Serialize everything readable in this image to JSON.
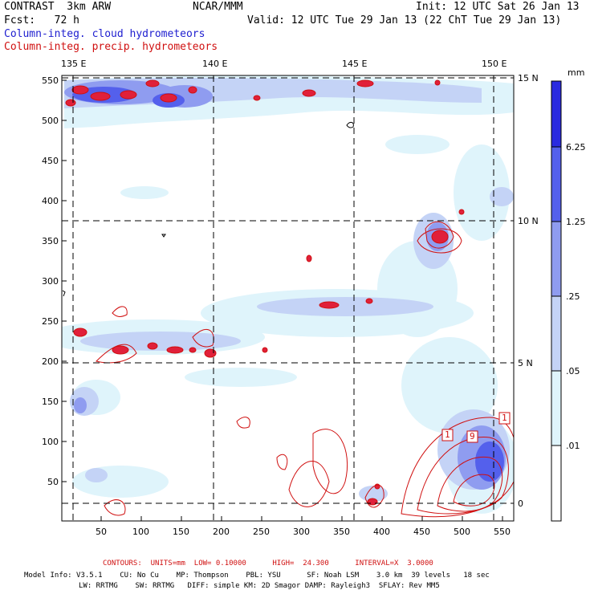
{
  "header": {
    "line1_left": "CONTRAST  3km ARW",
    "line1_mid": "NCAR/MMM",
    "line1_right": "Init: 12 UTC Sat 26 Jan 13",
    "line2_left": "Fcst:   72 h",
    "line2_right": "Valid: 12 UTC Tue 29 Jan 13 (22 ChT Tue 29 Jan 13)",
    "line3": "Column-integ. cloud hydrometeors",
    "line4": "Column-integ. precip. hydrometeors"
  },
  "colors": {
    "blue_title": "#2020d0",
    "red_title": "#d01010",
    "bin_001": "#ffffff",
    "bin_005": "#dff4fb",
    "bin_025": "#c4d3f6",
    "bin_125": "#8f9cf0",
    "bin_625": "#5460ec",
    "bin_top": "#2a2ae0"
  },
  "map": {
    "lon_labels": [
      "135 E",
      "140 E",
      "145 E",
      "150 E"
    ],
    "lat_labels": [
      "15 N",
      "10 N",
      "5 N",
      "0"
    ],
    "x_ticks": [
      "50",
      "100",
      "150",
      "200",
      "250",
      "300",
      "350",
      "400",
      "450",
      "500",
      "550"
    ],
    "y_ticks": [
      "550",
      "500",
      "450",
      "400",
      "350",
      "300",
      "250",
      "200",
      "150",
      "100",
      "50"
    ]
  },
  "colorbar": {
    "units": "mm",
    "levels": [
      "6.25",
      "1.25",
      ".25",
      ".05",
      ".01"
    ]
  },
  "footer": {
    "contours": "CONTOURS:  UNITS=mm  LOW= 0.10000      HIGH=  24.300      INTERVAL=X  3.0000",
    "model_line1": "Model Info: V3.5.1    CU: No Cu    MP: Thompson    PBL: YSU      SF: Noah LSM    3.0 km  39 levels   18 sec",
    "model_line2": "LW: RRTMG    SW: RRTMG   DIFF: simple KM: 2D Smagor DAMP: Rayleigh3  SFLAY: Rev MM5"
  },
  "contour_labels": [
    "1",
    "1",
    "9"
  ]
}
